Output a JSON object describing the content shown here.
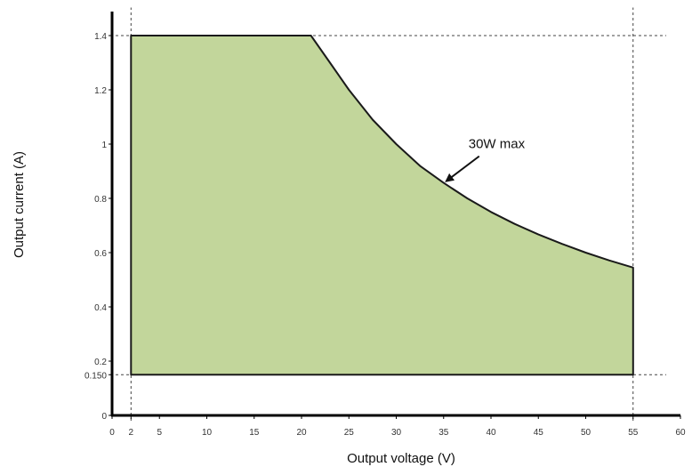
{
  "chart_data": {
    "type": "area",
    "title": "",
    "xlabel": "Output voltage (V)",
    "ylabel": "Output current (A)",
    "xlim": [
      0,
      60
    ],
    "ylim": [
      0,
      1.5
    ],
    "x_ticks": [
      0,
      2,
      5,
      10,
      15,
      20,
      25,
      30,
      35,
      40,
      45,
      50,
      55,
      60
    ],
    "x_tick_labels": [
      "0",
      "2",
      "5",
      "10",
      "15",
      "20",
      "25",
      "30",
      "35",
      "40",
      "45",
      "50",
      "55",
      "60"
    ],
    "y_ticks": [
      0,
      0.15,
      0.2,
      0.4,
      0.6,
      0.8,
      1.0,
      1.2,
      1.4
    ],
    "y_tick_labels": [
      "0",
      "0.150",
      "0.2",
      "0.4",
      "0.6",
      "0.8",
      "1",
      "1.2",
      "1.4"
    ],
    "reference_lines": {
      "x": [
        2,
        55
      ],
      "y": [
        0.15,
        1.4
      ]
    },
    "series": [
      {
        "x": [
          2,
          2,
          21,
          23,
          25,
          27.5,
          30,
          32.5,
          35,
          37.5,
          40,
          42.5,
          45,
          47.5,
          50,
          52.5,
          55,
          55
        ],
        "y": [
          0.15,
          1.4,
          1.4,
          1.3,
          1.2,
          1.09,
          1.0,
          0.92,
          0.857,
          0.8,
          0.75,
          0.706,
          0.667,
          0.632,
          0.6,
          0.571,
          0.545,
          0.15
        ],
        "fill": "#c2d69b",
        "stroke": "#1a1a1a"
      }
    ],
    "annotations": [
      {
        "text": "30W max",
        "arrow_to": [
          35,
          0.857
        ]
      }
    ],
    "grid": false,
    "legend": "none"
  }
}
